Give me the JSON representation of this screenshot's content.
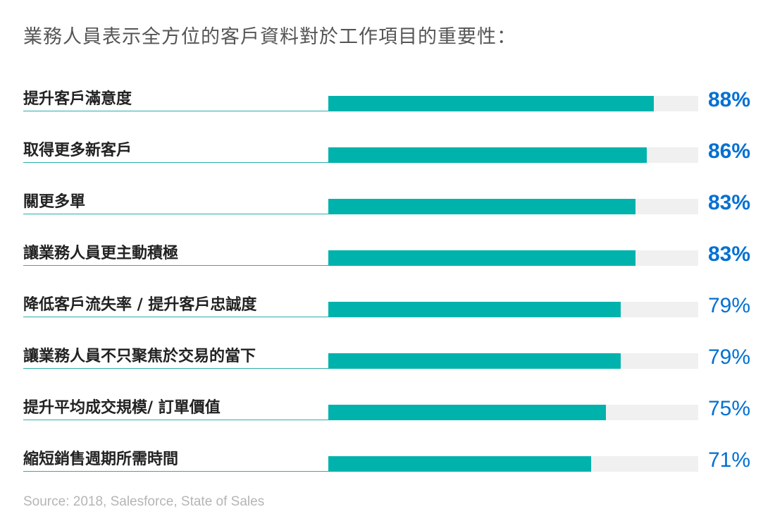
{
  "title": "業務人員表示全方位的客戶資料對於工作項目的重要性：",
  "source": "Source: 2018, Salesforce, State of Sales",
  "colors": {
    "bar": "#00b2ac",
    "track": "#f0f0f0",
    "value_text": "#0070d2",
    "rule": "#2aaea8"
  },
  "chart_data": {
    "type": "bar",
    "orientation": "horizontal",
    "title": "業務人員表示全方位的客戶資料對於工作項目的重要性：",
    "categories": [
      "提升客戶滿意度",
      "取得更多新客戶",
      "關更多單",
      "讓業務人員更主動積極",
      "降低客戶流失率 / 提升客戶忠誠度",
      "讓業務人員不只聚焦於交易的當下",
      "提升平均成交規模/ 訂單價值",
      "縮短銷售週期所需時間"
    ],
    "values": [
      88,
      86,
      83,
      83,
      79,
      79,
      75,
      71
    ],
    "value_labels": [
      "88%",
      "86%",
      "83%",
      "83%",
      "79%",
      "79%",
      "75%",
      "71%"
    ],
    "bold_labels": [
      true,
      true,
      true,
      true,
      false,
      false,
      false,
      false
    ],
    "xlim": [
      0,
      100
    ],
    "unit": "%"
  }
}
